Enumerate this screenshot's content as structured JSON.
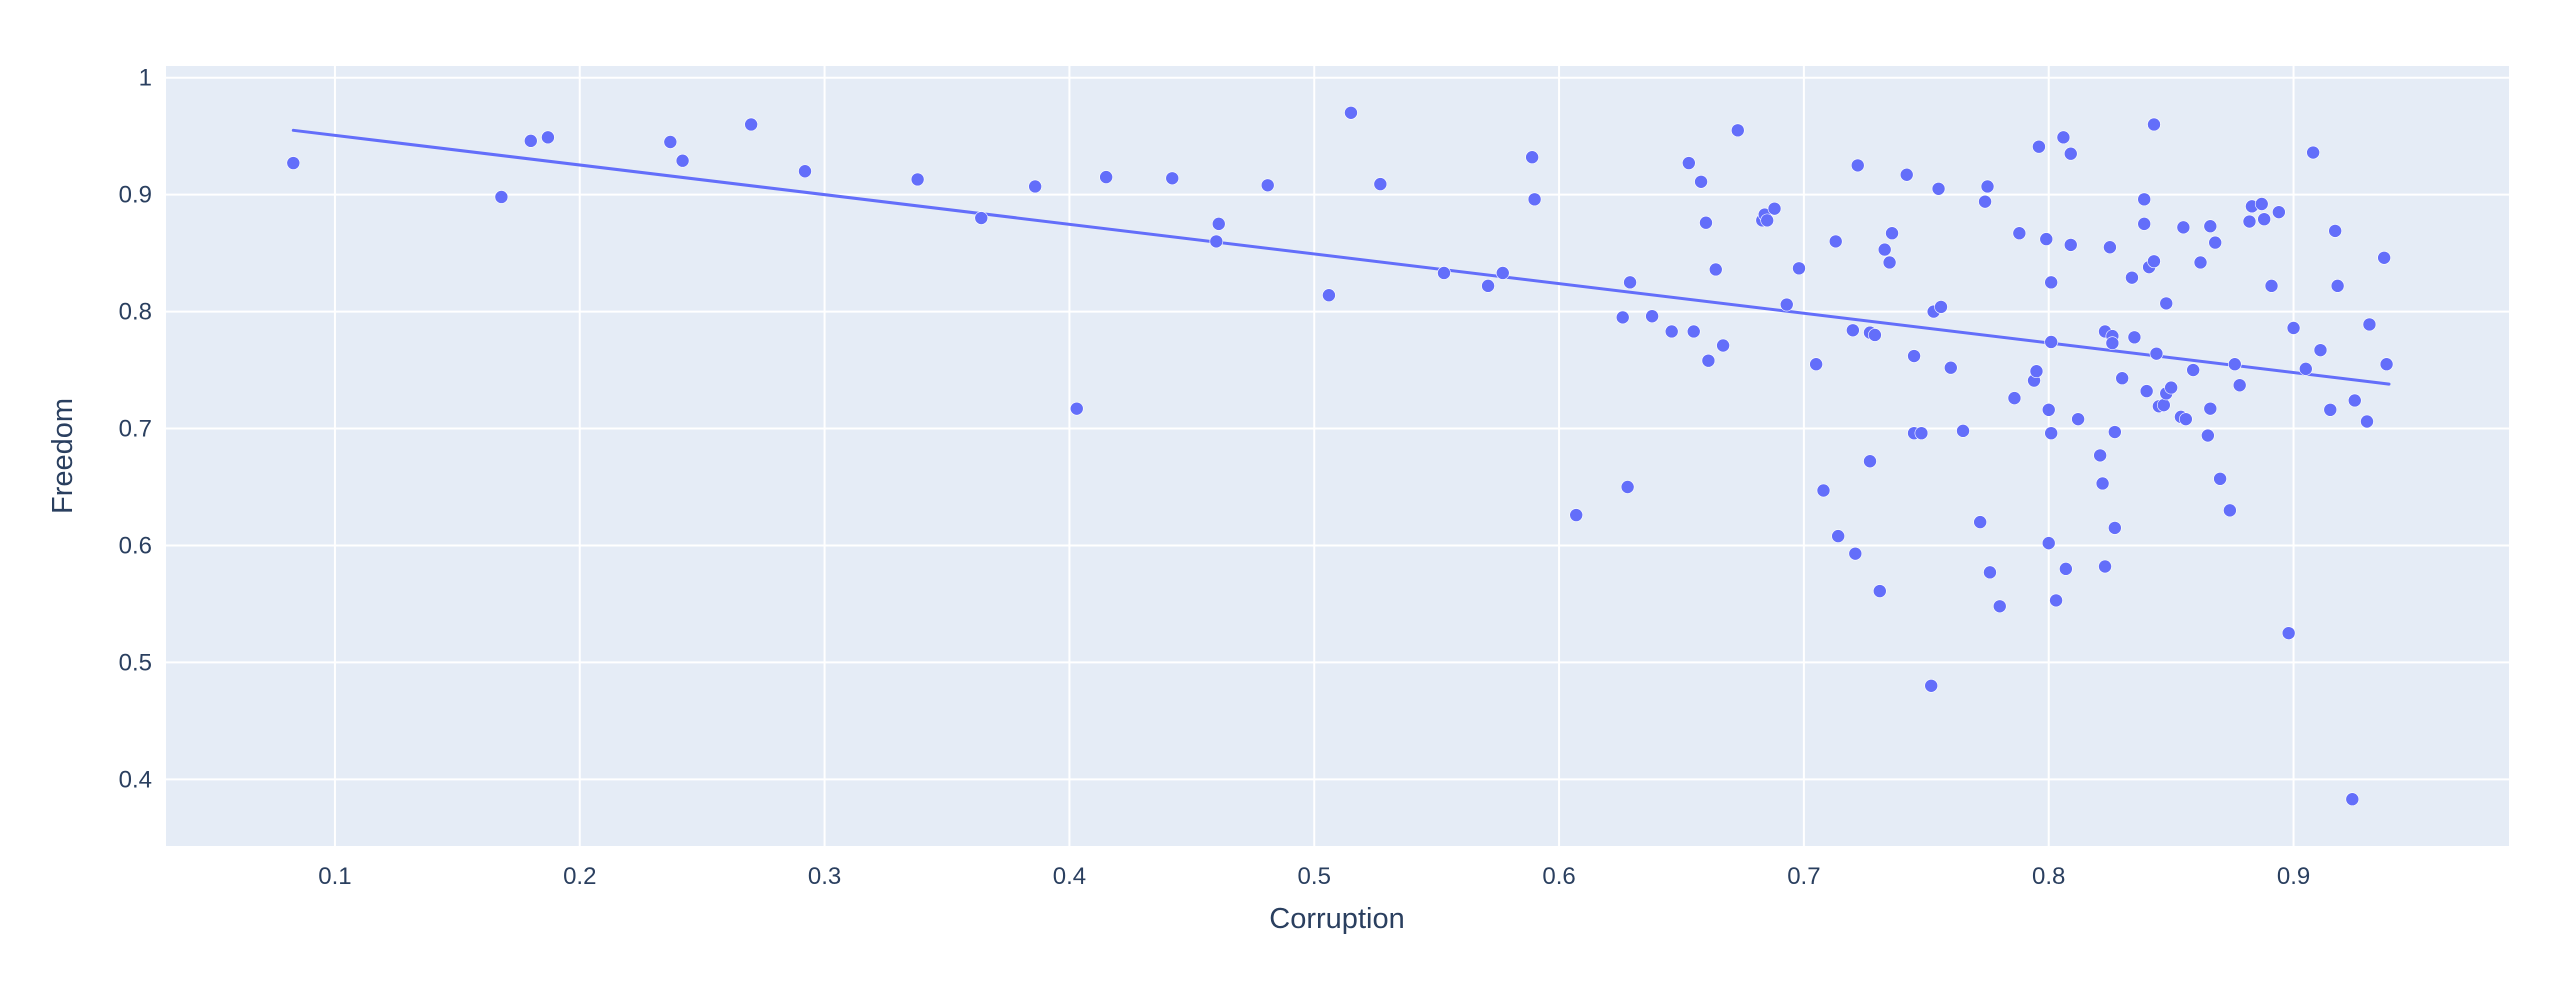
{
  "chart_data": {
    "type": "scatter",
    "title": "",
    "xlabel": "Corruption",
    "ylabel": "Freedom",
    "xlim": [
      0.031,
      0.988
    ],
    "ylim": [
      0.343,
      1.01
    ],
    "xticks": [
      0.1,
      0.2,
      0.3,
      0.4,
      0.5,
      0.6,
      0.7,
      0.8,
      0.9
    ],
    "yticks": [
      0.4,
      0.5,
      0.6,
      0.7,
      0.8,
      0.9,
      1
    ],
    "grid": true,
    "legend": "none",
    "colors": {
      "marker": "#636efa",
      "plot_bg": "#e5ecf6",
      "grid": "#ffffff",
      "text": "#2a3f5f"
    },
    "trendline": {
      "x": [
        0.083,
        0.939
      ],
      "y": [
        0.955,
        0.738
      ]
    },
    "series": [
      {
        "points": [
          [
            0.083,
            0.927
          ],
          [
            0.168,
            0.898
          ],
          [
            0.18,
            0.946
          ],
          [
            0.187,
            0.949
          ],
          [
            0.237,
            0.945
          ],
          [
            0.242,
            0.929
          ],
          [
            0.27,
            0.96
          ],
          [
            0.292,
            0.92
          ],
          [
            0.338,
            0.913
          ],
          [
            0.364,
            0.88
          ],
          [
            0.386,
            0.907
          ],
          [
            0.403,
            0.717
          ],
          [
            0.415,
            0.915
          ],
          [
            0.442,
            0.914
          ],
          [
            0.46,
            0.86
          ],
          [
            0.461,
            0.875
          ],
          [
            0.481,
            0.908
          ],
          [
            0.506,
            0.814
          ],
          [
            0.515,
            0.97
          ],
          [
            0.527,
            0.909
          ],
          [
            0.553,
            0.833
          ],
          [
            0.571,
            0.822
          ],
          [
            0.577,
            0.833
          ],
          [
            0.589,
            0.932
          ],
          [
            0.59,
            0.896
          ],
          [
            0.607,
            0.626
          ],
          [
            0.626,
            0.795
          ],
          [
            0.628,
            0.65
          ],
          [
            0.629,
            0.825
          ],
          [
            0.638,
            0.796
          ],
          [
            0.646,
            0.783
          ],
          [
            0.653,
            0.927
          ],
          [
            0.655,
            0.783
          ],
          [
            0.658,
            0.911
          ],
          [
            0.66,
            0.876
          ],
          [
            0.661,
            0.758
          ],
          [
            0.664,
            0.836
          ],
          [
            0.667,
            0.771
          ],
          [
            0.673,
            0.955
          ],
          [
            0.683,
            0.878
          ],
          [
            0.684,
            0.883
          ],
          [
            0.685,
            0.878
          ],
          [
            0.688,
            0.888
          ],
          [
            0.693,
            0.806
          ],
          [
            0.698,
            0.837
          ],
          [
            0.705,
            0.755
          ],
          [
            0.708,
            0.647
          ],
          [
            0.713,
            0.86
          ],
          [
            0.714,
            0.608
          ],
          [
            0.72,
            0.784
          ],
          [
            0.721,
            0.593
          ],
          [
            0.722,
            0.925
          ],
          [
            0.727,
            0.782
          ],
          [
            0.727,
            0.672
          ],
          [
            0.729,
            0.78
          ],
          [
            0.731,
            0.561
          ],
          [
            0.733,
            0.853
          ],
          [
            0.735,
            0.842
          ],
          [
            0.736,
            0.867
          ],
          [
            0.742,
            0.917
          ],
          [
            0.745,
            0.762
          ],
          [
            0.745,
            0.696
          ],
          [
            0.748,
            0.696
          ],
          [
            0.752,
            0.48
          ],
          [
            0.753,
            0.8
          ],
          [
            0.755,
            0.905
          ],
          [
            0.756,
            0.804
          ],
          [
            0.76,
            0.752
          ],
          [
            0.765,
            0.698
          ],
          [
            0.772,
            0.62
          ],
          [
            0.774,
            0.894
          ],
          [
            0.775,
            0.907
          ],
          [
            0.776,
            0.577
          ],
          [
            0.78,
            0.548
          ],
          [
            0.786,
            0.726
          ],
          [
            0.788,
            0.867
          ],
          [
            0.794,
            0.741
          ],
          [
            0.795,
            0.749
          ],
          [
            0.796,
            0.941
          ],
          [
            0.799,
            0.862
          ],
          [
            0.8,
            0.716
          ],
          [
            0.8,
            0.602
          ],
          [
            0.801,
            0.825
          ],
          [
            0.801,
            0.774
          ],
          [
            0.801,
            0.696
          ],
          [
            0.803,
            0.553
          ],
          [
            0.806,
            0.949
          ],
          [
            0.807,
            0.58
          ],
          [
            0.809,
            0.935
          ],
          [
            0.809,
            0.857
          ],
          [
            0.812,
            0.708
          ],
          [
            0.821,
            0.677
          ],
          [
            0.822,
            0.653
          ],
          [
            0.823,
            0.783
          ],
          [
            0.823,
            0.582
          ],
          [
            0.825,
            0.855
          ],
          [
            0.826,
            0.779
          ],
          [
            0.826,
            0.773
          ],
          [
            0.827,
            0.697
          ],
          [
            0.827,
            0.615
          ],
          [
            0.83,
            0.743
          ],
          [
            0.834,
            0.829
          ],
          [
            0.835,
            0.778
          ],
          [
            0.839,
            0.896
          ],
          [
            0.839,
            0.875
          ],
          [
            0.84,
            0.732
          ],
          [
            0.841,
            0.838
          ],
          [
            0.843,
            0.843
          ],
          [
            0.843,
            0.96
          ],
          [
            0.844,
            0.764
          ],
          [
            0.845,
            0.719
          ],
          [
            0.847,
            0.72
          ],
          [
            0.848,
            0.807
          ],
          [
            0.848,
            0.73
          ],
          [
            0.85,
            0.735
          ],
          [
            0.854,
            0.71
          ],
          [
            0.855,
            0.872
          ],
          [
            0.856,
            0.708
          ],
          [
            0.859,
            0.75
          ],
          [
            0.862,
            0.842
          ],
          [
            0.865,
            0.694
          ],
          [
            0.866,
            0.717
          ],
          [
            0.866,
            0.873
          ],
          [
            0.868,
            0.859
          ],
          [
            0.87,
            0.657
          ],
          [
            0.874,
            0.63
          ],
          [
            0.876,
            0.755
          ],
          [
            0.878,
            0.737
          ],
          [
            0.882,
            0.877
          ],
          [
            0.883,
            0.89
          ],
          [
            0.887,
            0.892
          ],
          [
            0.888,
            0.879
          ],
          [
            0.891,
            0.822
          ],
          [
            0.894,
            0.885
          ],
          [
            0.898,
            0.525
          ],
          [
            0.9,
            0.786
          ],
          [
            0.905,
            0.751
          ],
          [
            0.908,
            0.936
          ],
          [
            0.911,
            0.767
          ],
          [
            0.915,
            0.716
          ],
          [
            0.917,
            0.869
          ],
          [
            0.918,
            0.822
          ],
          [
            0.924,
            0.383
          ],
          [
            0.925,
            0.724
          ],
          [
            0.93,
            0.706
          ],
          [
            0.931,
            0.789
          ],
          [
            0.937,
            0.846
          ],
          [
            0.938,
            0.755
          ]
        ]
      }
    ]
  }
}
